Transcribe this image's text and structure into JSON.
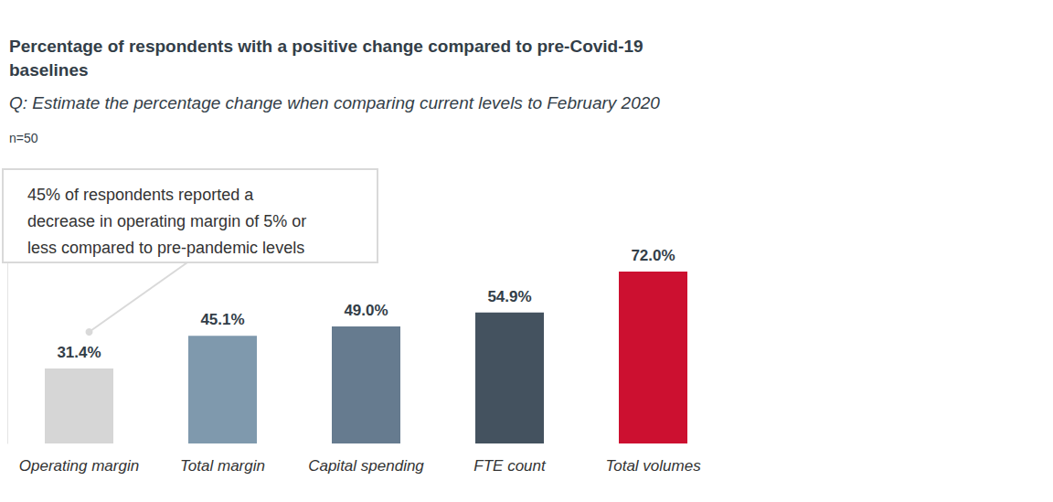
{
  "chart_data": {
    "type": "bar",
    "title": "Percentage of respondents with a positive change compared to pre-Covid-19 baselines",
    "subtitle": "Q: Estimate the percentage change when comparing current levels to February 2020",
    "annotations": [
      {
        "text": [
          "n=50"
        ]
      },
      {
        "text": [
          "45% of respondents reported a",
          "decrease in operating margin of 5% or",
          "less compared to pre-pandemic levels"
        ],
        "target": "Operating margin"
      }
    ],
    "categories": [
      "Operating margin",
      "Total margin",
      "Capital spending",
      "FTE count",
      "Total volumes"
    ],
    "values": [
      31.4,
      45.1,
      49.0,
      54.9,
      72.0
    ],
    "value_labels": [
      "31.4%",
      "45.1%",
      "49.0%",
      "54.9%",
      "72.0%"
    ],
    "colors": [
      "#d6d6d6",
      "#7f99ad",
      "#667b8f",
      "#44525f",
      "#cc1030"
    ],
    "ylim": [
      0,
      100
    ],
    "yticks": [
      0,
      100
    ],
    "grid": false,
    "data_labels": true,
    "tick_labels": "x"
  }
}
